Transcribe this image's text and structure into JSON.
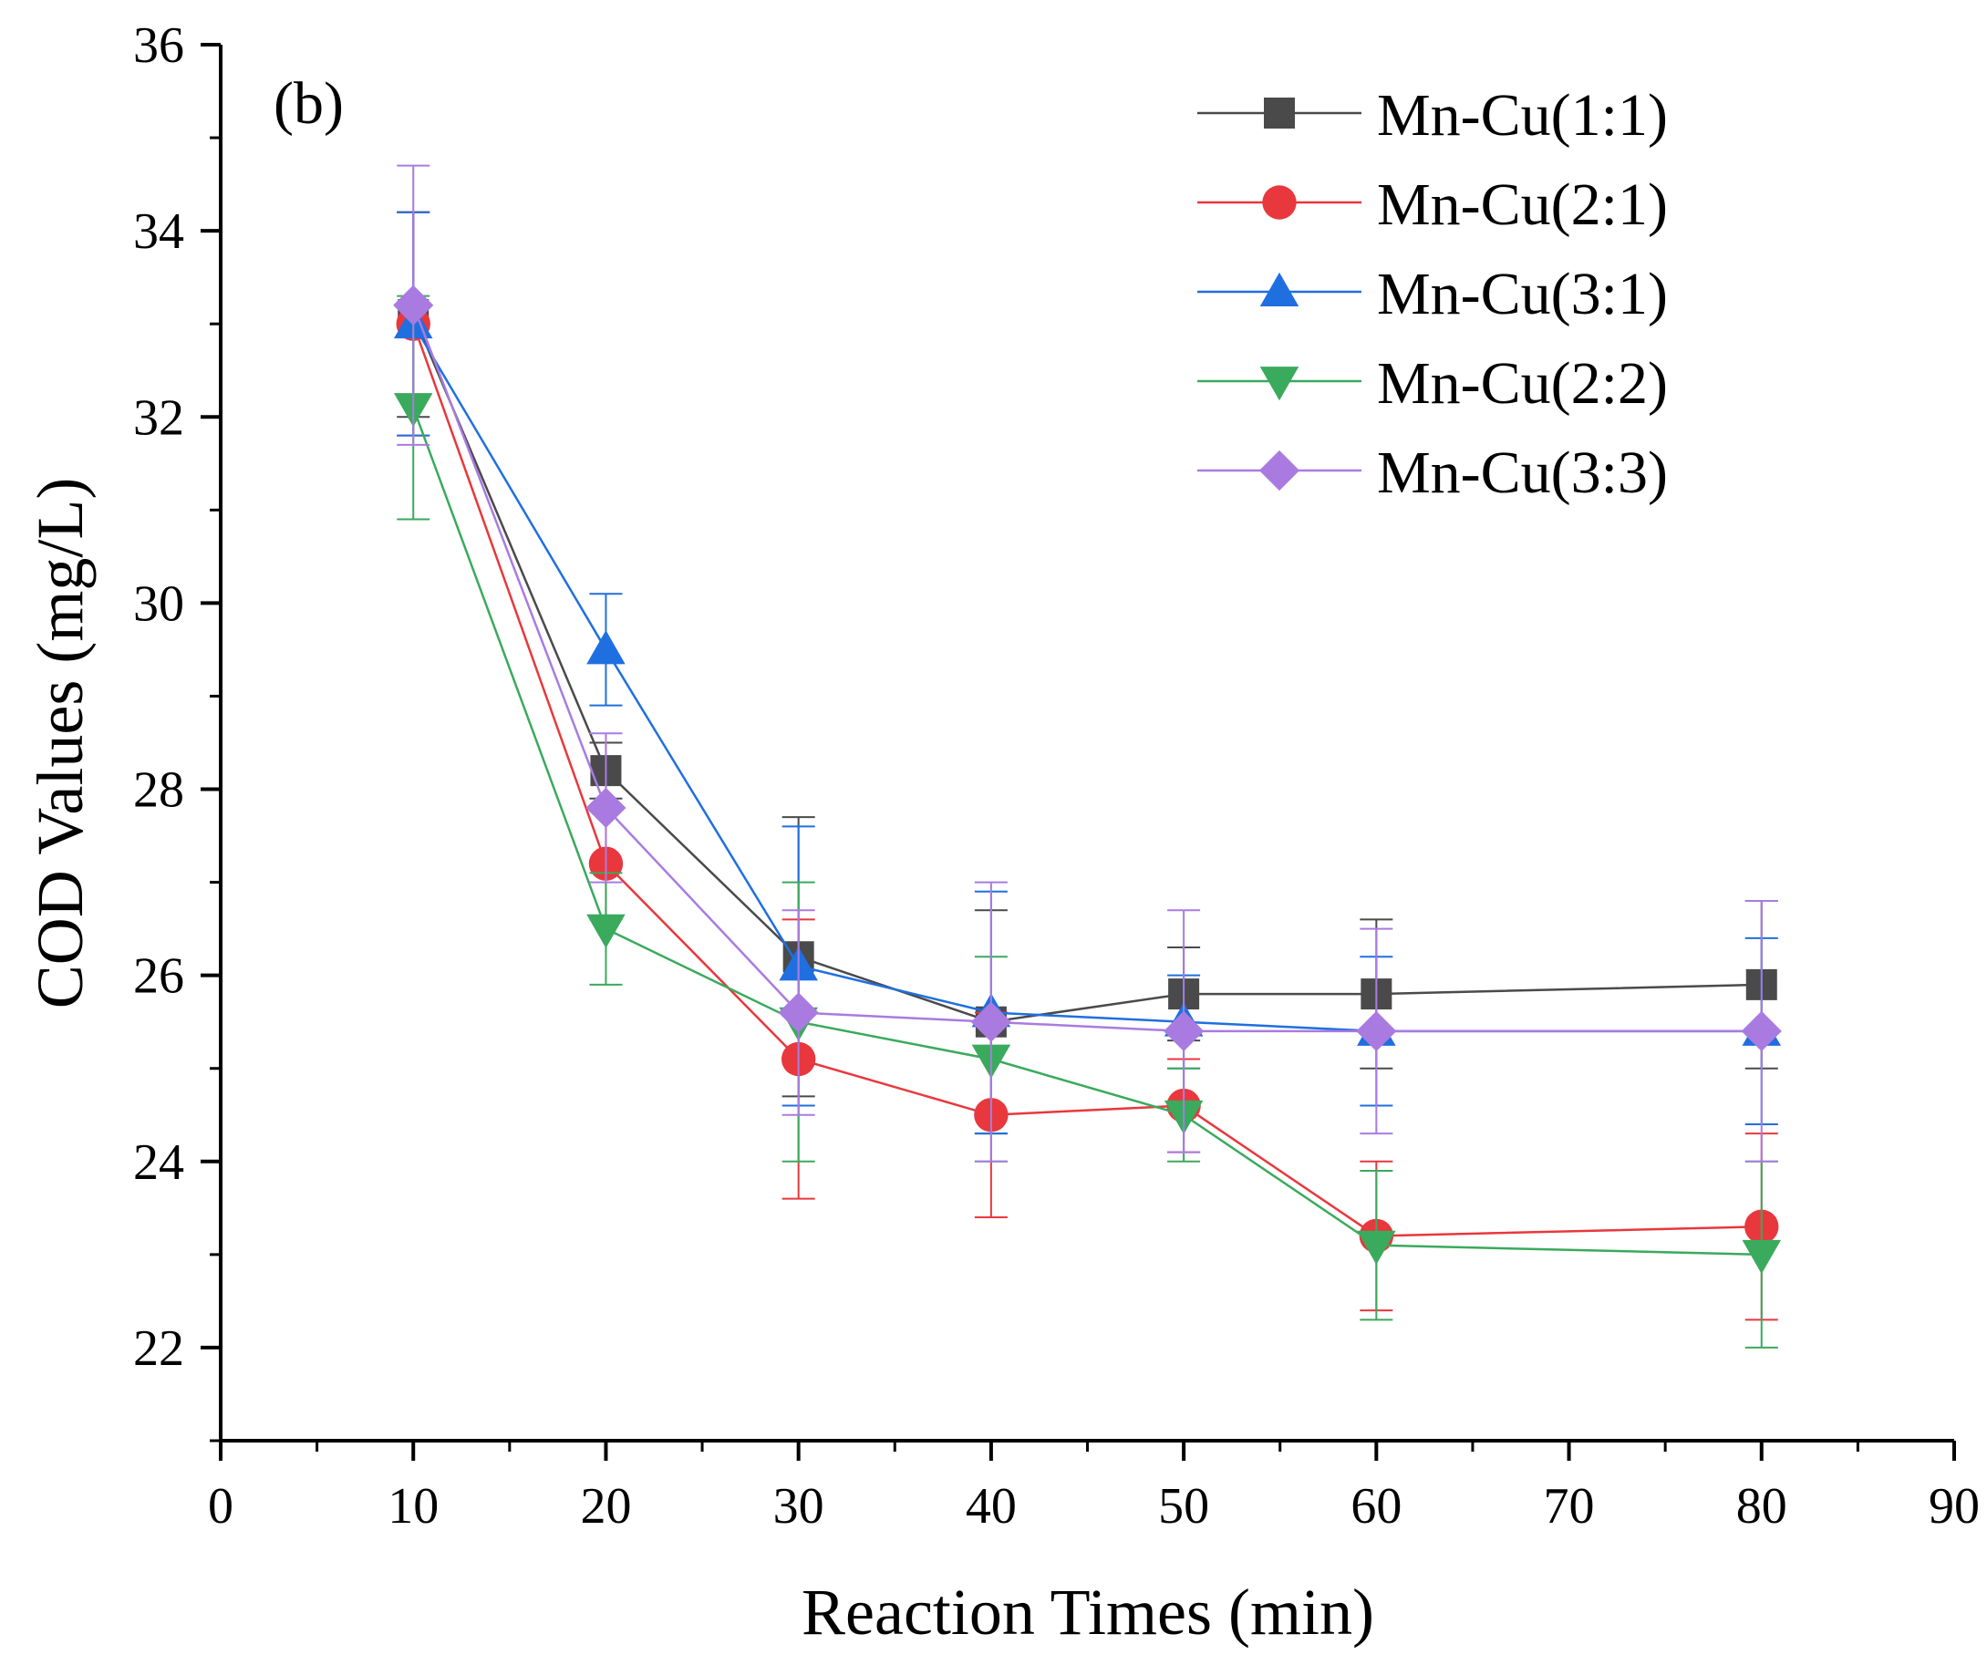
{
  "chart_data": {
    "type": "line",
    "panel_label": "(b)",
    "title": "",
    "xlabel": "Reaction Times (min)",
    "ylabel": "COD Values (mg/L)",
    "xlim": [
      0,
      90
    ],
    "ylim": [
      21,
      36
    ],
    "xticks": [
      0,
      10,
      20,
      30,
      40,
      50,
      60,
      70,
      80,
      90
    ],
    "xtick_labels": [
      "0",
      "10",
      "20",
      "30",
      "40",
      "50",
      "60",
      "70",
      "80",
      "90"
    ],
    "yticks": [
      22,
      24,
      26,
      28,
      30,
      32,
      34,
      36
    ],
    "ytick_labels": [
      "22",
      "24",
      "26",
      "28",
      "30",
      "32",
      "34",
      "36"
    ],
    "grid": false,
    "legend_position": "top-right",
    "x": [
      10,
      20,
      30,
      40,
      50,
      60,
      80
    ],
    "series": [
      {
        "name": "Mn-Cu(1:1)",
        "marker": "square",
        "color": "#4a4a4a",
        "values": [
          33.1,
          28.2,
          26.2,
          25.5,
          25.8,
          25.8,
          25.9
        ],
        "errors": [
          1.1,
          0.3,
          1.5,
          1.2,
          0.5,
          0.8,
          0.9
        ]
      },
      {
        "name": "Mn-Cu(2:1)",
        "marker": "circle",
        "color": "#e8383d",
        "values": [
          33.0,
          27.2,
          25.1,
          24.5,
          24.6,
          23.2,
          23.3
        ],
        "errors": [
          1.2,
          0.6,
          1.5,
          1.1,
          0.5,
          0.8,
          1.0
        ]
      },
      {
        "name": "Mn-Cu(3:1)",
        "marker": "triangle-up",
        "color": "#1f6fe0",
        "values": [
          33.0,
          29.5,
          26.1,
          25.6,
          25.5,
          25.4,
          25.4
        ],
        "errors": [
          1.2,
          0.6,
          1.5,
          1.3,
          0.5,
          0.8,
          1.0
        ]
      },
      {
        "name": "Mn-Cu(2:2)",
        "marker": "triangle-down",
        "color": "#3aaa5c",
        "values": [
          32.1,
          26.5,
          25.5,
          25.1,
          24.5,
          23.1,
          23.0
        ],
        "errors": [
          1.2,
          0.6,
          1.5,
          1.1,
          0.5,
          0.8,
          1.0
        ]
      },
      {
        "name": "Mn-Cu(3:3)",
        "marker": "diamond",
        "color": "#a97be0",
        "values": [
          33.2,
          27.8,
          25.6,
          25.5,
          25.4,
          25.4,
          25.4
        ],
        "errors": [
          1.5,
          0.8,
          1.1,
          1.5,
          1.3,
          1.1,
          1.4
        ]
      }
    ]
  }
}
